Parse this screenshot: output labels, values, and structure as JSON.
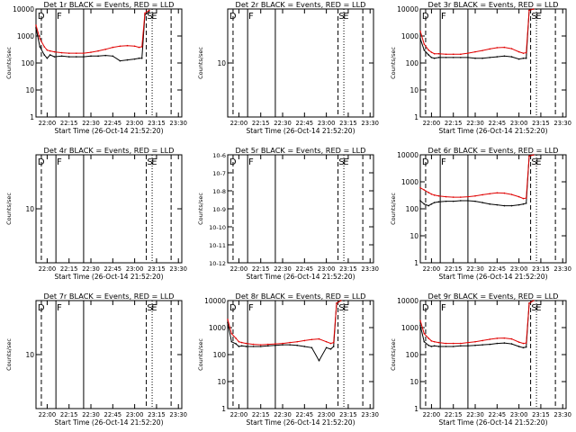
{
  "xlabel": "Start Time (26-Oct-14 21:52:20)",
  "ylabel": "Counts/sec",
  "x_ticks": [
    "22:00",
    "22:15",
    "22:30",
    "22:45",
    "23:00",
    "23:15",
    "23:30"
  ],
  "y_ticks": {
    "standard": [
      "10000",
      "1000",
      "100",
      "10",
      "1"
    ],
    "narrow": [
      "10"
    ],
    "tiny": [
      "10-6",
      "10-7",
      "10-8",
      "10-9",
      "10-10",
      "10-11",
      "10-12"
    ]
  },
  "markers": [
    "D",
    "F",
    "S",
    "E"
  ],
  "colors": {
    "events": "#000000",
    "lld": "#e00000",
    "axis": "#000000",
    "background": "#ffffff"
  },
  "chart_data": [
    {
      "panel": 1,
      "type": "line",
      "title": "Det 1r BLACK = Events, RED = LLD",
      "yscale": "log",
      "ylim": [
        1,
        10000
      ],
      "yticks_set": "standard",
      "x_time": [
        "21:52:20",
        "21:55",
        "21:58",
        "22:00",
        "22:02",
        "22:05",
        "22:10",
        "22:15",
        "22:20",
        "22:25",
        "22:30",
        "22:35",
        "22:40",
        "22:45",
        "22:50",
        "22:55",
        "23:00",
        "23:03",
        "23:05",
        "23:07",
        "23:10"
      ],
      "series": [
        {
          "name": "Events",
          "values": [
            2000,
            400,
            200,
            150,
            200,
            170,
            180,
            170,
            170,
            170,
            180,
            180,
            190,
            180,
            120,
            130,
            140,
            150,
            150,
            6000,
            8000
          ]
        },
        {
          "name": "LLD",
          "values": [
            2500,
            800,
            400,
            300,
            280,
            260,
            240,
            230,
            230,
            230,
            250,
            280,
            320,
            380,
            420,
            440,
            420,
            380,
            400,
            7000,
            9000
          ]
        }
      ]
    },
    {
      "panel": 2,
      "type": "line",
      "title": "Det 2r BLACK = Events, RED = LLD",
      "yscale": "log",
      "ylim": [
        1,
        100
      ],
      "yticks_set": "narrow",
      "x_time": [],
      "series": []
    },
    {
      "panel": 3,
      "type": "line",
      "title": "Det 3r BLACK = Events, RED = LLD",
      "yscale": "log",
      "ylim": [
        1,
        10000
      ],
      "yticks_set": "standard",
      "x_time": [
        "21:52:20",
        "21:55",
        "21:58",
        "22:00",
        "22:02",
        "22:05",
        "22:10",
        "22:15",
        "22:20",
        "22:25",
        "22:30",
        "22:35",
        "22:40",
        "22:45",
        "22:50",
        "22:55",
        "23:00",
        "23:03",
        "23:05",
        "23:07",
        "23:10"
      ],
      "series": [
        {
          "name": "Events",
          "values": [
            800,
            300,
            200,
            160,
            150,
            160,
            160,
            160,
            160,
            160,
            150,
            150,
            160,
            170,
            180,
            170,
            140,
            150,
            150,
            9000,
            10000
          ]
        },
        {
          "name": "LLD",
          "values": [
            1500,
            500,
            300,
            250,
            220,
            220,
            210,
            210,
            210,
            230,
            260,
            290,
            330,
            370,
            380,
            340,
            260,
            230,
            240,
            9000,
            10000
          ]
        }
      ]
    },
    {
      "panel": 4,
      "type": "line",
      "title": "Det 4r BLACK = Events, RED = LLD",
      "yscale": "log",
      "ylim": [
        1,
        100
      ],
      "yticks_set": "narrow",
      "x_time": [],
      "series": []
    },
    {
      "panel": 5,
      "type": "line",
      "title": "Det 5r BLACK = Events, RED = LLD",
      "yscale": "log",
      "ylim": [
        1e-12,
        1e-06
      ],
      "yticks_set": "tiny",
      "x_time": [],
      "series": []
    },
    {
      "panel": 6,
      "type": "line",
      "title": "Det 6r BLACK = Events, RED = LLD",
      "yscale": "log",
      "ylim": [
        1,
        10000
      ],
      "yticks_set": "standard",
      "x_time": [
        "21:52:20",
        "21:55",
        "21:58",
        "22:00",
        "22:02",
        "22:05",
        "22:10",
        "22:15",
        "22:20",
        "22:25",
        "22:30",
        "22:35",
        "22:40",
        "22:45",
        "22:50",
        "22:55",
        "23:00",
        "23:03",
        "23:05",
        "23:07",
        "23:10"
      ],
      "series": [
        {
          "name": "Events",
          "values": [
            200,
            150,
            130,
            150,
            170,
            180,
            190,
            190,
            200,
            200,
            190,
            170,
            150,
            140,
            130,
            130,
            140,
            150,
            160,
            9000,
            10000
          ]
        },
        {
          "name": "LLD",
          "values": [
            600,
            500,
            400,
            350,
            320,
            300,
            280,
            270,
            270,
            280,
            300,
            330,
            360,
            390,
            380,
            340,
            280,
            240,
            250,
            9000,
            10000
          ]
        }
      ]
    },
    {
      "panel": 7,
      "type": "line",
      "title": "Det 7r BLACK = Events, RED = LLD",
      "yscale": "log",
      "ylim": [
        1,
        100
      ],
      "yticks_set": "narrow",
      "x_time": [],
      "series": []
    },
    {
      "panel": 8,
      "type": "line",
      "title": "Det 8r BLACK = Events, RED = LLD",
      "yscale": "log",
      "ylim": [
        1,
        10000
      ],
      "yticks_set": "standard",
      "x_time": [
        "21:52:20",
        "21:55",
        "21:58",
        "22:00",
        "22:02",
        "22:05",
        "22:10",
        "22:15",
        "22:20",
        "22:25",
        "22:30",
        "22:35",
        "22:40",
        "22:45",
        "22:50",
        "22:55",
        "23:00",
        "23:03",
        "23:05",
        "23:07",
        "23:10"
      ],
      "series": [
        {
          "name": "Events",
          "values": [
            1500,
            300,
            250,
            200,
            210,
            200,
            200,
            200,
            210,
            220,
            230,
            230,
            220,
            200,
            180,
            60,
            180,
            160,
            200,
            8000,
            10000
          ]
        },
        {
          "name": "LLD",
          "values": [
            2000,
            600,
            400,
            300,
            280,
            260,
            240,
            230,
            240,
            250,
            260,
            280,
            300,
            330,
            360,
            380,
            300,
            260,
            280,
            8000,
            10000
          ]
        }
      ]
    },
    {
      "panel": 9,
      "type": "line",
      "title": "Det 9r BLACK = Events, RED = LLD",
      "yscale": "log",
      "ylim": [
        1,
        10000
      ],
      "yticks_set": "standard",
      "x_time": [
        "21:52:20",
        "21:55",
        "21:58",
        "22:00",
        "22:02",
        "22:05",
        "22:10",
        "22:15",
        "22:20",
        "22:25",
        "22:30",
        "22:35",
        "22:40",
        "22:45",
        "22:50",
        "22:55",
        "23:00",
        "23:03",
        "23:05",
        "23:07",
        "23:10"
      ],
      "series": [
        {
          "name": "Events",
          "values": [
            1200,
            300,
            220,
            200,
            210,
            200,
            200,
            200,
            210,
            210,
            220,
            230,
            240,
            260,
            270,
            250,
            200,
            180,
            190,
            8000,
            10000
          ]
        },
        {
          "name": "LLD",
          "values": [
            1800,
            600,
            400,
            320,
            300,
            280,
            260,
            260,
            260,
            280,
            300,
            330,
            370,
            400,
            410,
            380,
            290,
            260,
            270,
            8000,
            10000
          ]
        }
      ]
    }
  ]
}
